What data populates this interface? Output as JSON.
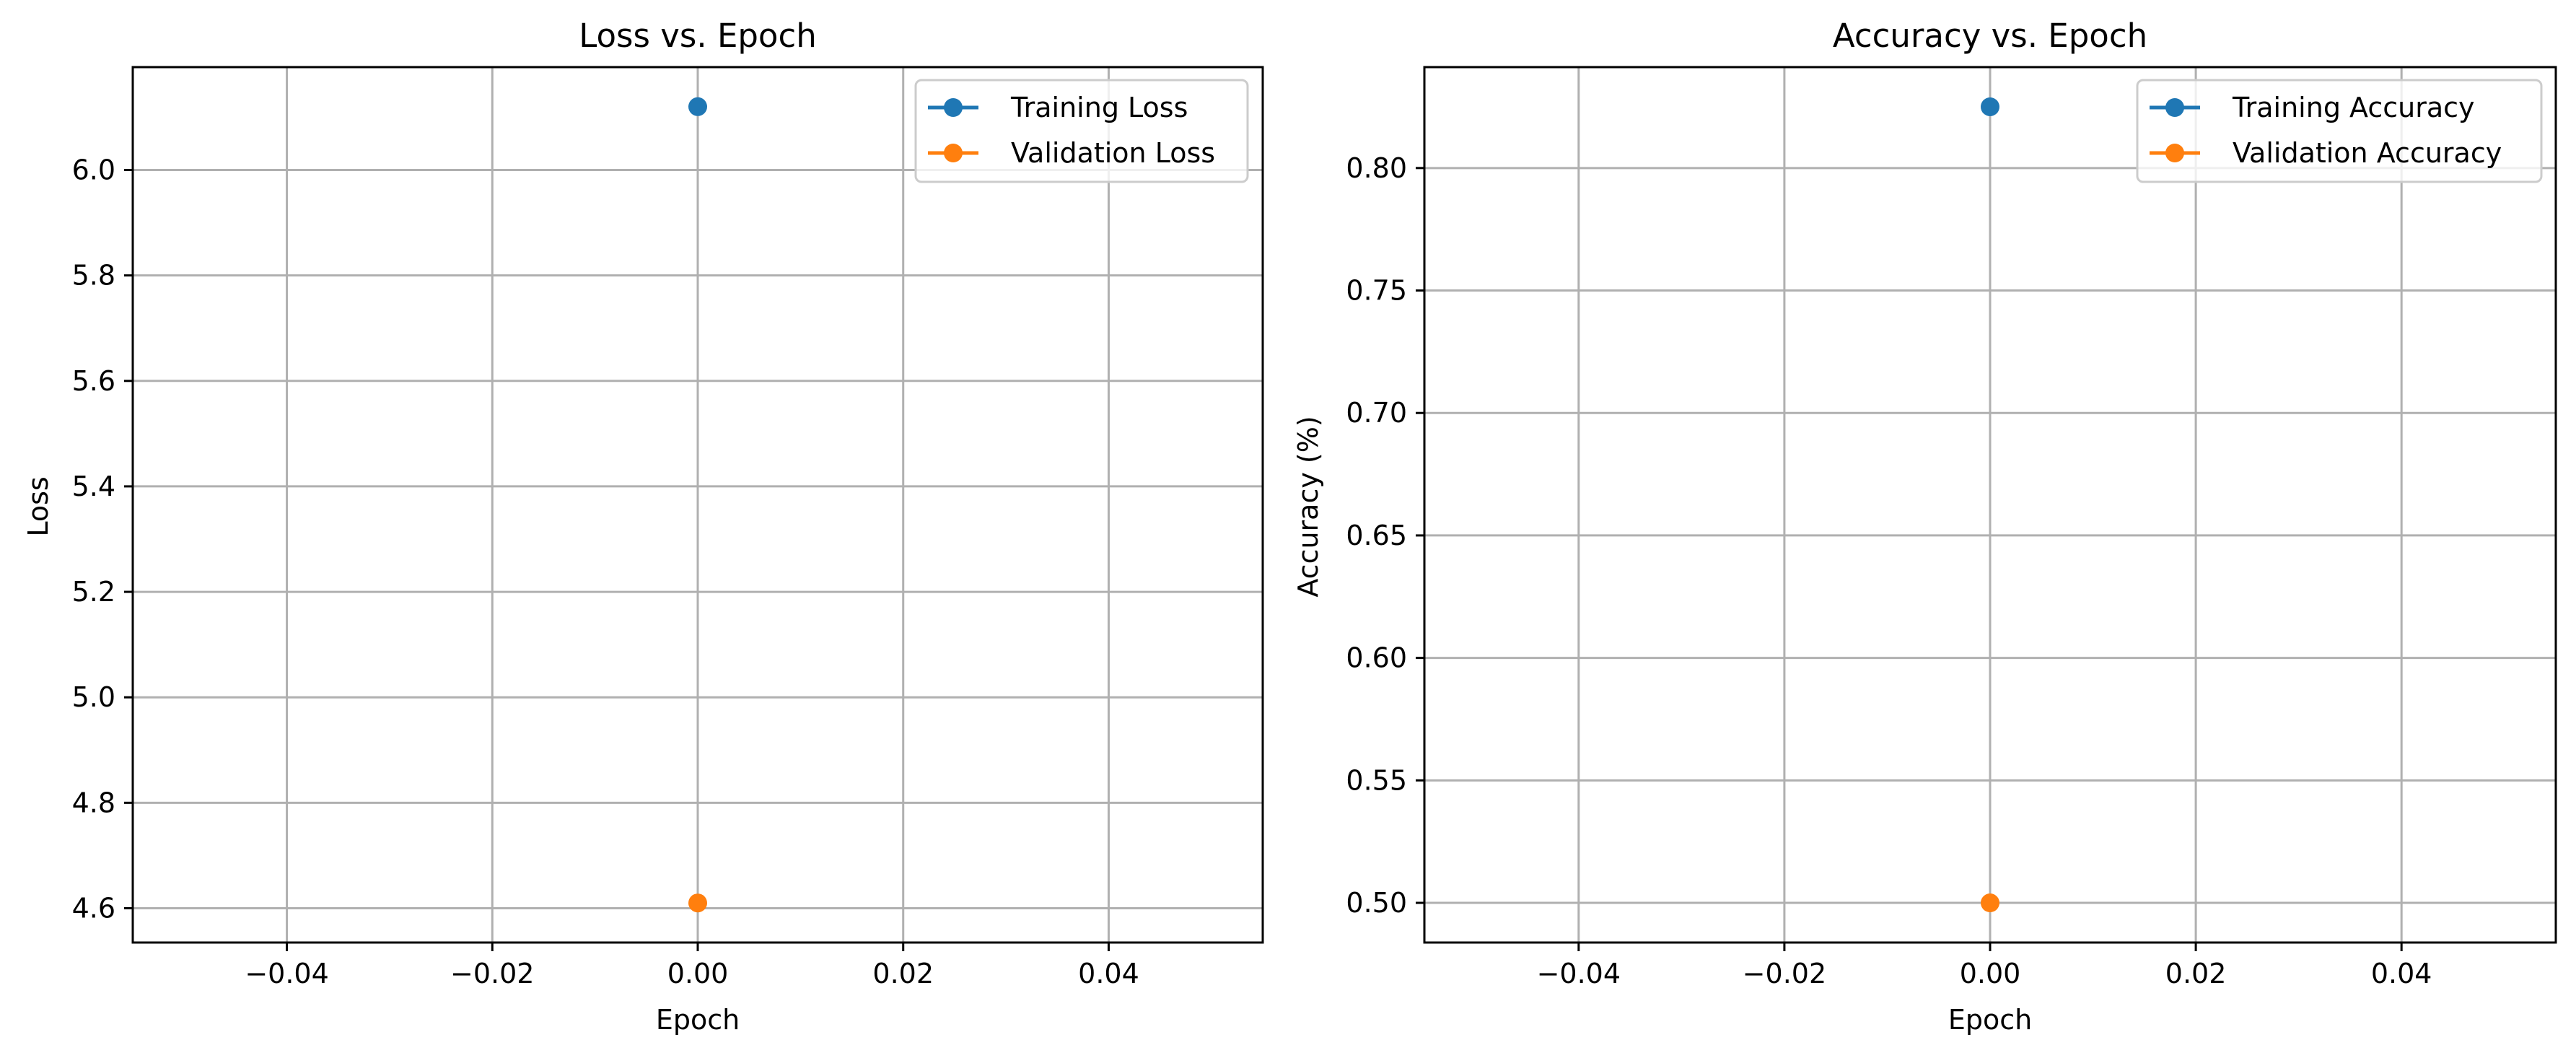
{
  "chart_data": [
    {
      "type": "line",
      "title": "Loss vs. Epoch",
      "xlabel": "Epoch",
      "ylabel": "Loss",
      "xlim": [
        -0.055,
        0.055
      ],
      "ylim": [
        4.535,
        6.195
      ],
      "xticks": [
        -0.04,
        -0.02,
        0.0,
        0.02,
        0.04
      ],
      "xtick_labels": [
        "−0.04",
        "−0.02",
        "0.00",
        "0.02",
        "0.04"
      ],
      "yticks": [
        4.6,
        4.8,
        5.0,
        5.2,
        5.4,
        5.6,
        5.8,
        6.0
      ],
      "ytick_labels": [
        "4.6",
        "4.8",
        "5.0",
        "5.2",
        "5.4",
        "5.6",
        "5.8",
        "6.0"
      ],
      "grid": true,
      "legend": "top-right",
      "series": [
        {
          "name": "Training Loss",
          "color": "#1f77b4",
          "marker": "circle",
          "x": [
            0
          ],
          "y": [
            6.12
          ]
        },
        {
          "name": "Validation Loss",
          "color": "#ff7f0e",
          "marker": "circle",
          "x": [
            0
          ],
          "y": [
            4.61
          ]
        }
      ]
    },
    {
      "type": "line",
      "title": "Accuracy vs. Epoch",
      "xlabel": "Epoch",
      "ylabel": "Accuracy (%)",
      "xlim": [
        -0.055,
        0.055
      ],
      "ylim": [
        0.4838,
        0.8412
      ],
      "xticks": [
        -0.04,
        -0.02,
        0.0,
        0.02,
        0.04
      ],
      "xtick_labels": [
        "−0.04",
        "−0.02",
        "0.00",
        "0.02",
        "0.04"
      ],
      "yticks": [
        0.5,
        0.55,
        0.6,
        0.65,
        0.7,
        0.75,
        0.8
      ],
      "ytick_labels": [
        "0.50",
        "0.55",
        "0.60",
        "0.65",
        "0.70",
        "0.75",
        "0.80"
      ],
      "grid": true,
      "legend": "top-right",
      "series": [
        {
          "name": "Training Accuracy",
          "color": "#1f77b4",
          "marker": "circle",
          "x": [
            0
          ],
          "y": [
            0.825
          ]
        },
        {
          "name": "Validation Accuracy",
          "color": "#ff7f0e",
          "marker": "circle",
          "x": [
            0
          ],
          "y": [
            0.5
          ]
        }
      ]
    }
  ]
}
